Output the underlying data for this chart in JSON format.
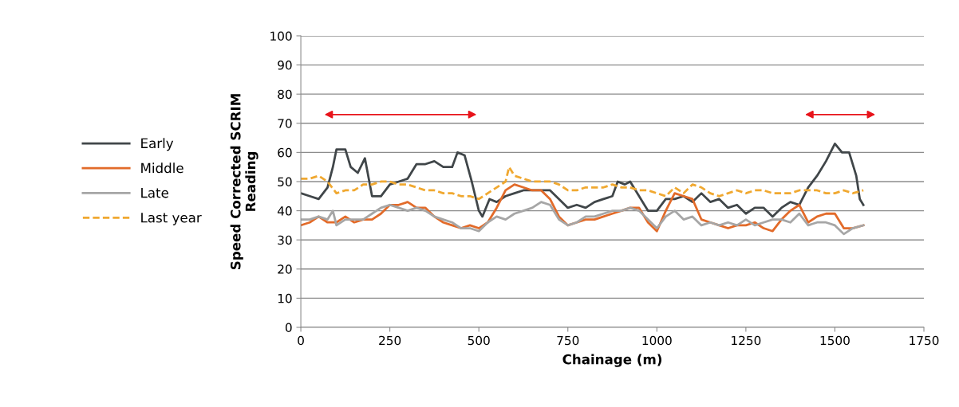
{
  "chart_data": {
    "type": "line",
    "xlabel": "Chainage (m)",
    "ylabel": "Speed Corrected SCRIM\nReading",
    "xlim": [
      0,
      1750
    ],
    "xticks": [
      0,
      250,
      500,
      750,
      1000,
      1250,
      1500,
      1750
    ],
    "ylim": [
      0,
      100
    ],
    "yticks": [
      0,
      10,
      20,
      30,
      40,
      50,
      60,
      70,
      80,
      90,
      100
    ],
    "grid": "y",
    "legend": "left",
    "marker": "none",
    "series": [
      {
        "name": "Early",
        "color": "#404649",
        "line_style": "solid",
        "x": [
          0,
          25,
          50,
          75,
          90,
          100,
          125,
          140,
          160,
          180,
          200,
          225,
          250,
          275,
          300,
          325,
          350,
          375,
          400,
          425,
          440,
          460,
          480,
          500,
          510,
          530,
          550,
          575,
          600,
          625,
          650,
          700,
          750,
          775,
          800,
          825,
          850,
          875,
          890,
          910,
          925,
          950,
          975,
          1000,
          1025,
          1050,
          1075,
          1100,
          1125,
          1150,
          1175,
          1200,
          1225,
          1250,
          1275,
          1300,
          1325,
          1350,
          1375,
          1400,
          1425,
          1450,
          1475,
          1500,
          1520,
          1540,
          1560,
          1570,
          1580
        ],
        "values": [
          46,
          45,
          44,
          48,
          55,
          61,
          61,
          55,
          53,
          58,
          45,
          45,
          49,
          50,
          51,
          56,
          56,
          57,
          55,
          55,
          60,
          59,
          50,
          40,
          38,
          44,
          43,
          45,
          46,
          47,
          47,
          47,
          41,
          42,
          41,
          43,
          44,
          45,
          50,
          49,
          50,
          45,
          40,
          40,
          44,
          44,
          45,
          43,
          46,
          43,
          44,
          41,
          42,
          39,
          41,
          41,
          38,
          41,
          43,
          42,
          48,
          52,
          57,
          63,
          60,
          60,
          52,
          44,
          42
        ]
      },
      {
        "name": "Middle",
        "color": "#e26b2a",
        "line_style": "solid",
        "x": [
          0,
          25,
          50,
          75,
          100,
          125,
          150,
          175,
          200,
          225,
          250,
          275,
          300,
          325,
          350,
          375,
          400,
          425,
          450,
          475,
          500,
          525,
          550,
          575,
          600,
          625,
          650,
          675,
          700,
          725,
          750,
          775,
          800,
          825,
          850,
          875,
          900,
          925,
          950,
          975,
          1000,
          1025,
          1050,
          1075,
          1100,
          1125,
          1150,
          1175,
          1200,
          1225,
          1250,
          1275,
          1300,
          1325,
          1350,
          1375,
          1400,
          1425,
          1450,
          1475,
          1500,
          1525,
          1550,
          1580
        ],
        "values": [
          35,
          36,
          38,
          36,
          36,
          38,
          36,
          37,
          37,
          39,
          42,
          42,
          43,
          41,
          41,
          38,
          36,
          35,
          34,
          35,
          34,
          36,
          41,
          47,
          49,
          48,
          47,
          47,
          44,
          38,
          35,
          36,
          37,
          37,
          38,
          39,
          40,
          41,
          41,
          36,
          33,
          40,
          46,
          45,
          44,
          37,
          36,
          35,
          34,
          35,
          35,
          36,
          34,
          33,
          37,
          40,
          42,
          36,
          38,
          39,
          39,
          34,
          34,
          35
        ]
      },
      {
        "name": "Late",
        "color": "#a6a6a6",
        "line_style": "solid",
        "x": [
          0,
          25,
          50,
          75,
          90,
          100,
          125,
          150,
          175,
          200,
          225,
          250,
          275,
          300,
          325,
          350,
          375,
          400,
          425,
          450,
          475,
          500,
          525,
          550,
          575,
          600,
          625,
          650,
          675,
          700,
          725,
          750,
          775,
          800,
          825,
          850,
          875,
          900,
          925,
          950,
          975,
          1000,
          1025,
          1050,
          1075,
          1100,
          1125,
          1150,
          1175,
          1200,
          1225,
          1250,
          1275,
          1300,
          1325,
          1350,
          1375,
          1400,
          1425,
          1450,
          1475,
          1500,
          1525,
          1550,
          1580
        ],
        "values": [
          37,
          37,
          38,
          37,
          40,
          35,
          37,
          37,
          37,
          39,
          41,
          42,
          41,
          40,
          41,
          40,
          38,
          37,
          36,
          34,
          34,
          33,
          36,
          38,
          37,
          39,
          40,
          41,
          43,
          42,
          37,
          35,
          36,
          38,
          38,
          39,
          40,
          40,
          41,
          40,
          37,
          34,
          38,
          40,
          37,
          38,
          35,
          36,
          35,
          36,
          35,
          37,
          35,
          36,
          37,
          37,
          36,
          39,
          35,
          36,
          36,
          35,
          32,
          34,
          35
        ]
      },
      {
        "name": "Last year",
        "color": "#f0a830",
        "line_style": "dashed",
        "x": [
          0,
          25,
          50,
          75,
          100,
          125,
          150,
          175,
          200,
          225,
          250,
          275,
          300,
          325,
          350,
          375,
          400,
          425,
          450,
          475,
          500,
          525,
          550,
          575,
          585,
          600,
          625,
          650,
          675,
          700,
          725,
          750,
          775,
          800,
          825,
          850,
          875,
          900,
          925,
          950,
          975,
          1000,
          1025,
          1050,
          1075,
          1100,
          1125,
          1150,
          1175,
          1200,
          1225,
          1250,
          1275,
          1300,
          1325,
          1350,
          1375,
          1400,
          1425,
          1450,
          1475,
          1500,
          1525,
          1550,
          1580
        ],
        "values": [
          51,
          51,
          52,
          50,
          46,
          47,
          47,
          49,
          49,
          50,
          50,
          49,
          49,
          48,
          47,
          47,
          46,
          46,
          45,
          45,
          44,
          46,
          48,
          50,
          55,
          52,
          51,
          50,
          50,
          50,
          49,
          47,
          47,
          48,
          48,
          48,
          49,
          48,
          48,
          47,
          47,
          46,
          45,
          48,
          46,
          49,
          48,
          46,
          45,
          46,
          47,
          46,
          47,
          47,
          46,
          46,
          46,
          47,
          47,
          47,
          46,
          46,
          47,
          46,
          47
        ]
      }
    ]
  }
}
